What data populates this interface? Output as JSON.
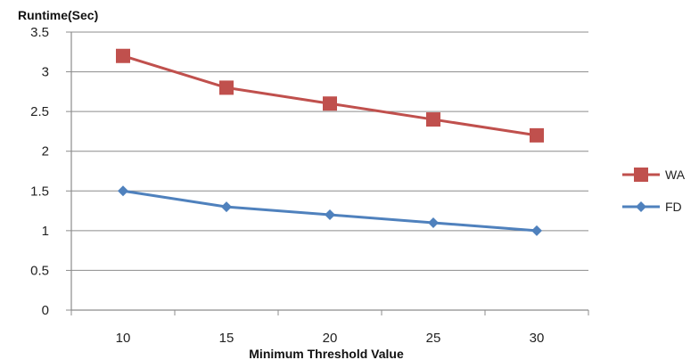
{
  "chart_data": {
    "type": "line",
    "title": "",
    "ylabel": "Runtime(Sec)",
    "xlabel": "Minimum Threshold Value",
    "categories": [
      "10",
      "15",
      "20",
      "25",
      "30"
    ],
    "ylim": [
      0,
      3.5
    ],
    "yticks": [
      "0",
      "0.5",
      "1",
      "1.5",
      "2",
      "2.5",
      "3",
      "3.5"
    ],
    "grid": true,
    "legend_position": "right",
    "series": [
      {
        "name": "WA",
        "values": [
          3.2,
          2.8,
          2.6,
          2.4,
          2.2
        ],
        "color": "#c0504d",
        "marker": "square"
      },
      {
        "name": "FD",
        "values": [
          1.5,
          1.3,
          1.2,
          1.1,
          1.0
        ],
        "color": "#4f81bd",
        "marker": "diamond"
      }
    ]
  }
}
